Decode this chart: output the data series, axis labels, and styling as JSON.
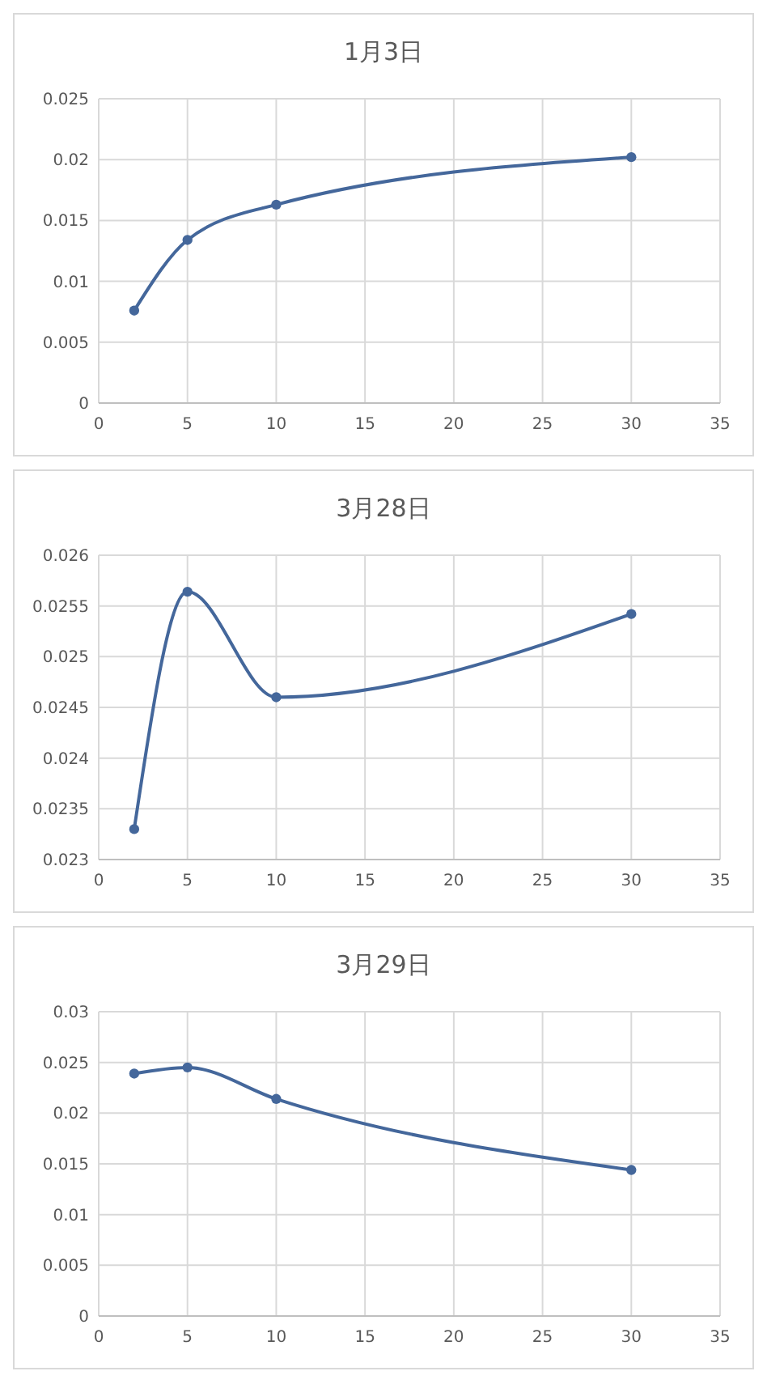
{
  "chart_data": [
    {
      "type": "line",
      "title": "1月3日",
      "x": [
        2,
        5,
        10,
        30
      ],
      "series": [
        {
          "color": "#44679b",
          "values": [
            0.0076,
            0.0134,
            0.0163,
            0.0202
          ]
        }
      ],
      "xlim": [
        0,
        35
      ],
      "xticks": [
        0,
        5,
        10,
        15,
        20,
        25,
        30,
        35
      ],
      "ylim": [
        0,
        0.025
      ],
      "yticks": [
        0,
        0.005,
        0.01,
        0.015,
        0.02,
        0.025
      ],
      "grid": true,
      "marker": "circle"
    },
    {
      "type": "line",
      "title": "3月28日",
      "x": [
        2,
        5,
        10,
        30
      ],
      "series": [
        {
          "color": "#44679b",
          "values": [
            0.0233,
            0.02564,
            0.0246,
            0.02542
          ]
        }
      ],
      "xlim": [
        0,
        35
      ],
      "xticks": [
        0,
        5,
        10,
        15,
        20,
        25,
        30,
        35
      ],
      "ylim": [
        0.023,
        0.026
      ],
      "yticks": [
        0.023,
        0.0235,
        0.024,
        0.0245,
        0.025,
        0.0255,
        0.026
      ],
      "grid": true,
      "marker": "circle"
    },
    {
      "type": "line",
      "title": "3月29日",
      "x": [
        2,
        5,
        10,
        30
      ],
      "series": [
        {
          "color": "#44679b",
          "values": [
            0.0239,
            0.0245,
            0.0214,
            0.0144
          ]
        }
      ],
      "xlim": [
        0,
        35
      ],
      "xticks": [
        0,
        5,
        10,
        15,
        20,
        25,
        30,
        35
      ],
      "ylim": [
        0,
        0.03
      ],
      "yticks": [
        0,
        0.005,
        0.01,
        0.015,
        0.02,
        0.025,
        0.03
      ],
      "grid": true,
      "marker": "circle"
    }
  ]
}
